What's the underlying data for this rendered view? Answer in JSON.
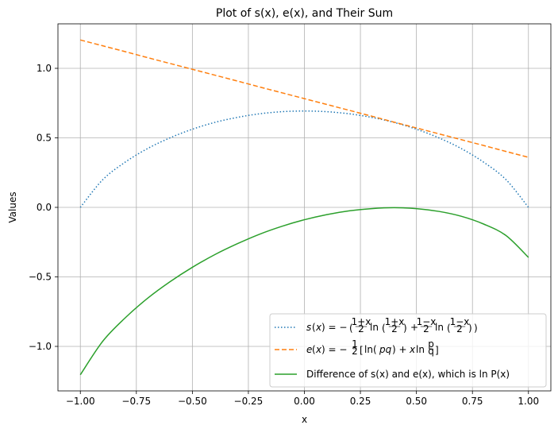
{
  "chart_data": {
    "type": "line",
    "title": "Plot of s(x), e(x), and Their Sum",
    "xlabel": "x",
    "ylabel": "Values",
    "xlim": [
      -1.1,
      1.1
    ],
    "ylim": [
      -1.32,
      1.32
    ],
    "x_ticks": [
      -1.0,
      -0.75,
      -0.5,
      -0.25,
      0.0,
      0.25,
      0.5,
      0.75,
      1.0
    ],
    "x_tick_labels": [
      "−1.00",
      "−0.75",
      "−0.50",
      "−0.25",
      "0.00",
      "0.25",
      "0.50",
      "0.75",
      "1.00"
    ],
    "y_ticks": [
      -1.0,
      -0.5,
      0.0,
      0.5,
      1.0
    ],
    "y_tick_labels": [
      "−1.0",
      "−0.5",
      "0.0",
      "0.5",
      "1.0"
    ],
    "grid": true,
    "legend_position": "lower-right",
    "x_values": [
      -1.0,
      -0.9,
      -0.8,
      -0.7,
      -0.6,
      -0.5,
      -0.4,
      -0.3,
      -0.2,
      -0.1,
      0.0,
      0.1,
      0.2,
      0.3,
      0.4,
      0.5,
      0.6,
      0.7,
      0.8,
      0.9,
      1.0
    ],
    "series": [
      {
        "name": "s(x) = −((1+x)/2 ln((1+x)/2) + (1−x)/2 ln((1−x)/2))",
        "color": "#1f77b4",
        "style": "dotted",
        "values": [
          0.0,
          0.199,
          0.325,
          0.423,
          0.5,
          0.562,
          0.611,
          0.647,
          0.673,
          0.688,
          0.693,
          0.688,
          0.673,
          0.647,
          0.611,
          0.562,
          0.5,
          0.423,
          0.325,
          0.199,
          0.0
        ]
      },
      {
        "name": "e(x) = −½[ln(pq) + x ln(p/q)]",
        "color": "#ff7f0e",
        "style": "dashed",
        "values": [
          1.204,
          1.162,
          1.12,
          1.077,
          1.035,
          0.993,
          0.951,
          0.909,
          0.866,
          0.824,
          0.782,
          0.74,
          0.698,
          0.656,
          0.613,
          0.571,
          0.529,
          0.487,
          0.445,
          0.402,
          0.36
        ]
      },
      {
        "name": "Difference of s(x) and e(x), which is ln P(x)",
        "color": "#2ca02c",
        "style": "solid",
        "values": [
          -1.204,
          -0.963,
          -0.795,
          -0.654,
          -0.535,
          -0.431,
          -0.34,
          -0.262,
          -0.193,
          -0.136,
          -0.089,
          -0.052,
          -0.025,
          -0.009,
          -0.002,
          -0.009,
          -0.029,
          -0.064,
          -0.12,
          -0.203,
          -0.36
        ]
      }
    ]
  },
  "legend": {
    "s_label_plain": "s(x) = −(½(1+x) ln(½(1+x)) + ½(1−x) ln(½(1−x)))",
    "e_label_plain": "e(x) = −½[ln(pq) + x ln(p/q)]",
    "diff_label_plain": "Difference of s(x) and e(x), which is ln P(x)"
  }
}
